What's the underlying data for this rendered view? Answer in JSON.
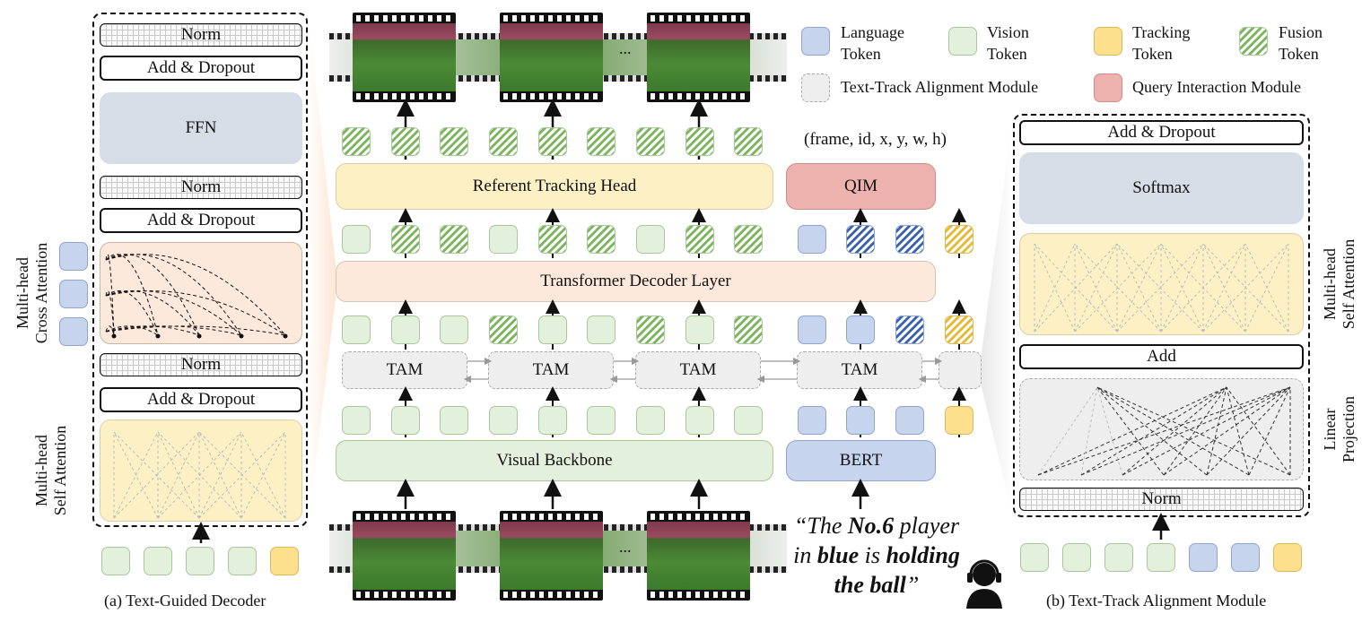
{
  "legend": {
    "language_token": "Language\nToken",
    "vision_token": "Vision\nToken",
    "tracking_token": "Tracking\nToken",
    "fusion_token": "Fusion\nToken",
    "tam_module": "Text-Track Alignment Module",
    "qim_module": "Query Interaction Module"
  },
  "decoder": {
    "norm_top": "Norm",
    "add_dropout_top": "Add & Dropout",
    "ffn": "FFN",
    "norm_mid": "Norm",
    "add_dropout_mid": "Add & Dropout",
    "norm_low": "Norm",
    "add_dropout_low": "Add & Dropout",
    "cross_attention_label": "Multi-head\nCross Attention",
    "self_attention_label": "Multi-head\nSelf Attention",
    "caption": "(a) Text-Guided Decoder"
  },
  "pipeline": {
    "referent_head": "Referent Tracking Head",
    "qim": "QIM",
    "output_format": "(frame, id, x, y, w, h)",
    "transformer_decoder": "Transformer Decoder Layer",
    "tam": "TAM",
    "visual_backbone": "Visual Backbone",
    "bert": "BERT",
    "ellipsis": "...",
    "query_parts": [
      {
        "text": "“The ",
        "style": "i"
      },
      {
        "text": "No.6",
        "style": "bi"
      },
      {
        "text": " player",
        "style": "i"
      },
      {
        "text": "\n",
        "style": "br"
      },
      {
        "text": "in ",
        "style": "i"
      },
      {
        "text": "blue",
        "style": "bi"
      },
      {
        "text": " is ",
        "style": "i"
      },
      {
        "text": "holding",
        "style": "bi"
      },
      {
        "text": "\n",
        "style": "br"
      },
      {
        "text": "the ball",
        "style": "bi"
      },
      {
        "text": "”",
        "style": "i"
      }
    ]
  },
  "alignment": {
    "add_dropout": "Add & Dropout",
    "softmax": "Softmax",
    "add": "Add",
    "norm": "Norm",
    "self_attention_label": "Multi-head\nSelf Attention",
    "linear_projection_label": "Linear\nProjection",
    "caption": "(b) Text-Track Alignment Module"
  },
  "colors": {
    "vision": "#e3f0dc",
    "language": "#c6d4ee",
    "tracking": "#fde08e",
    "fusion": "#7ab55c",
    "qim": "#edb1ae",
    "decoder": "#fde9dc",
    "head": "#fdf0c4",
    "tam": "#eeeeee",
    "block": "#d6dde6"
  }
}
